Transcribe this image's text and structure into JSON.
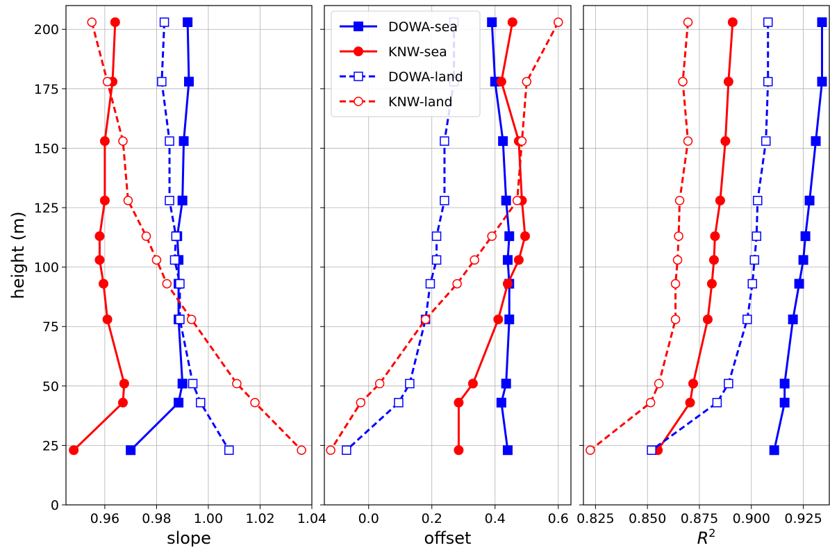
{
  "chart_data": [
    {
      "type": "line",
      "xlabel": "slope",
      "ylabel": "height (m)",
      "xlim": [
        0.945,
        1.04
      ],
      "ylim": [
        0,
        210
      ],
      "xticks": [
        "0.96",
        "0.98",
        "1.00",
        "1.02",
        "1.04"
      ],
      "xtick_values": [
        0.96,
        0.98,
        1.0,
        1.02,
        1.04
      ],
      "yticks": [
        "0",
        "25",
        "50",
        "75",
        "100",
        "125",
        "150",
        "175",
        "200"
      ],
      "ytick_values": [
        0,
        25,
        50,
        75,
        100,
        125,
        150,
        175,
        200
      ],
      "grid": true,
      "series": [
        {
          "name": "DOWA-sea",
          "color": "#0000ff",
          "style": "solid",
          "marker": "filled-square",
          "points": [
            [
              0.992,
              203
            ],
            [
              0.9925,
              178
            ],
            [
              0.9905,
              153
            ],
            [
              0.99,
              128
            ],
            [
              0.988,
              113
            ],
            [
              0.9885,
              103
            ],
            [
              0.9885,
              93
            ],
            [
              0.9885,
              78
            ],
            [
              0.99,
              51
            ],
            [
              0.9885,
              43
            ],
            [
              0.97,
              23
            ]
          ]
        },
        {
          "name": "KNW-sea",
          "color": "#ff0000",
          "style": "solid",
          "marker": "filled-circle",
          "points": [
            [
              0.964,
              203
            ],
            [
              0.963,
              178
            ],
            [
              0.96,
              153
            ],
            [
              0.96,
              128
            ],
            [
              0.958,
              113
            ],
            [
              0.958,
              103
            ],
            [
              0.9595,
              93
            ],
            [
              0.961,
              78
            ],
            [
              0.9675,
              51
            ],
            [
              0.967,
              43
            ],
            [
              0.948,
              23
            ]
          ]
        },
        {
          "name": "DOWA-land",
          "color": "#0000ff",
          "style": "dashed",
          "marker": "open-square",
          "points": [
            [
              0.983,
              203
            ],
            [
              0.982,
              178
            ],
            [
              0.985,
              153
            ],
            [
              0.985,
              128
            ],
            [
              0.9875,
              113
            ],
            [
              0.987,
              103
            ],
            [
              0.989,
              93
            ],
            [
              0.989,
              78
            ],
            [
              0.994,
              51
            ],
            [
              0.997,
              43
            ],
            [
              1.008,
              23
            ]
          ]
        },
        {
          "name": "KNW-land",
          "color": "#ff0000",
          "style": "dashed",
          "marker": "open-circle",
          "points": [
            [
              0.955,
              203
            ],
            [
              0.961,
              178
            ],
            [
              0.967,
              153
            ],
            [
              0.969,
              128
            ],
            [
              0.976,
              113
            ],
            [
              0.98,
              103
            ],
            [
              0.984,
              93
            ],
            [
              0.9935,
              78
            ],
            [
              1.011,
              51
            ],
            [
              1.018,
              43
            ],
            [
              1.036,
              23
            ]
          ]
        }
      ]
    },
    {
      "type": "line",
      "xlabel": "offset",
      "xlim": [
        -0.14,
        0.64
      ],
      "ylim": [
        0,
        210
      ],
      "xticks": [
        "0.0",
        "0.2",
        "0.4",
        "0.6"
      ],
      "xtick_values": [
        0.0,
        0.2,
        0.4,
        0.6
      ],
      "grid": true,
      "legend": {
        "placement": "upper-left",
        "entries": [
          "DOWA-sea",
          "KNW-sea",
          "DOWA-land",
          "KNW-land"
        ]
      },
      "series": [
        {
          "name": "DOWA-sea",
          "color": "#0000ff",
          "style": "solid",
          "marker": "filled-square",
          "points": [
            [
              0.39,
              203
            ],
            [
              0.4,
              178
            ],
            [
              0.425,
              153
            ],
            [
              0.435,
              128
            ],
            [
              0.445,
              113
            ],
            [
              0.44,
              103
            ],
            [
              0.445,
              93
            ],
            [
              0.445,
              78
            ],
            [
              0.435,
              51
            ],
            [
              0.42,
              43
            ],
            [
              0.44,
              23
            ]
          ]
        },
        {
          "name": "KNW-sea",
          "color": "#ff0000",
          "style": "solid",
          "marker": "filled-circle",
          "points": [
            [
              0.455,
              203
            ],
            [
              0.42,
              178
            ],
            [
              0.475,
              153
            ],
            [
              0.485,
              128
            ],
            [
              0.495,
              113
            ],
            [
              0.475,
              103
            ],
            [
              0.44,
              93
            ],
            [
              0.41,
              78
            ],
            [
              0.33,
              51
            ],
            [
              0.285,
              43
            ],
            [
              0.285,
              23
            ]
          ]
        },
        {
          "name": "DOWA-land",
          "color": "#0000ff",
          "style": "dashed",
          "marker": "open-square",
          "points": [
            [
              0.27,
              203
            ],
            [
              0.27,
              178
            ],
            [
              0.24,
              153
            ],
            [
              0.24,
              128
            ],
            [
              0.215,
              113
            ],
            [
              0.215,
              103
            ],
            [
              0.195,
              93
            ],
            [
              0.18,
              78
            ],
            [
              0.13,
              51
            ],
            [
              0.095,
              43
            ],
            [
              -0.07,
              23
            ]
          ]
        },
        {
          "name": "KNW-land",
          "color": "#ff0000",
          "style": "dashed",
          "marker": "open-circle",
          "points": [
            [
              0.6,
              203
            ],
            [
              0.5,
              178
            ],
            [
              0.485,
              153
            ],
            [
              0.47,
              128
            ],
            [
              0.39,
              113
            ],
            [
              0.335,
              103
            ],
            [
              0.28,
              93
            ],
            [
              0.18,
              78
            ],
            [
              0.035,
              51
            ],
            [
              -0.025,
              43
            ],
            [
              -0.12,
              23
            ]
          ]
        }
      ]
    },
    {
      "type": "line",
      "xlabel": "R",
      "xlabel_sup": "2",
      "xlim": [
        0.8192,
        0.9375
      ],
      "ylim": [
        0,
        210
      ],
      "xticks": [
        "0.825",
        "0.850",
        "0.875",
        "0.900",
        "0.925"
      ],
      "xtick_values": [
        0.825,
        0.85,
        0.875,
        0.9,
        0.925
      ],
      "grid": true,
      "series": [
        {
          "name": "DOWA-sea",
          "color": "#0000ff",
          "style": "solid",
          "marker": "filled-square",
          "points": [
            [
              0.934,
              203
            ],
            [
              0.934,
              178
            ],
            [
              0.931,
              153
            ],
            [
              0.928,
              128
            ],
            [
              0.926,
              113
            ],
            [
              0.925,
              103
            ],
            [
              0.923,
              93
            ],
            [
              0.92,
              78
            ],
            [
              0.916,
              51
            ],
            [
              0.916,
              43
            ],
            [
              0.911,
              23
            ]
          ]
        },
        {
          "name": "KNW-sea",
          "color": "#ff0000",
          "style": "solid",
          "marker": "filled-circle",
          "points": [
            [
              0.891,
              203
            ],
            [
              0.889,
              178
            ],
            [
              0.8875,
              153
            ],
            [
              0.885,
              128
            ],
            [
              0.8825,
              113
            ],
            [
              0.882,
              103
            ],
            [
              0.881,
              93
            ],
            [
              0.879,
              78
            ],
            [
              0.872,
              51
            ],
            [
              0.8705,
              43
            ],
            [
              0.855,
              23
            ]
          ]
        },
        {
          "name": "DOWA-land",
          "color": "#0000ff",
          "style": "dashed",
          "marker": "open-square",
          "points": [
            [
              0.908,
              203
            ],
            [
              0.908,
              178
            ],
            [
              0.907,
              153
            ],
            [
              0.903,
              128
            ],
            [
              0.9025,
              113
            ],
            [
              0.9015,
              103
            ],
            [
              0.9005,
              93
            ],
            [
              0.898,
              78
            ],
            [
              0.889,
              51
            ],
            [
              0.8835,
              43
            ],
            [
              0.852,
              23
            ]
          ]
        },
        {
          "name": "KNW-land",
          "color": "#ff0000",
          "style": "dashed",
          "marker": "open-circle",
          "points": [
            [
              0.8695,
              203
            ],
            [
              0.867,
              178
            ],
            [
              0.8695,
              153
            ],
            [
              0.8655,
              128
            ],
            [
              0.865,
              113
            ],
            [
              0.8645,
              103
            ],
            [
              0.8635,
              93
            ],
            [
              0.8635,
              78
            ],
            [
              0.8555,
              51
            ],
            [
              0.8515,
              43
            ],
            [
              0.8225,
              23
            ]
          ]
        }
      ]
    }
  ]
}
